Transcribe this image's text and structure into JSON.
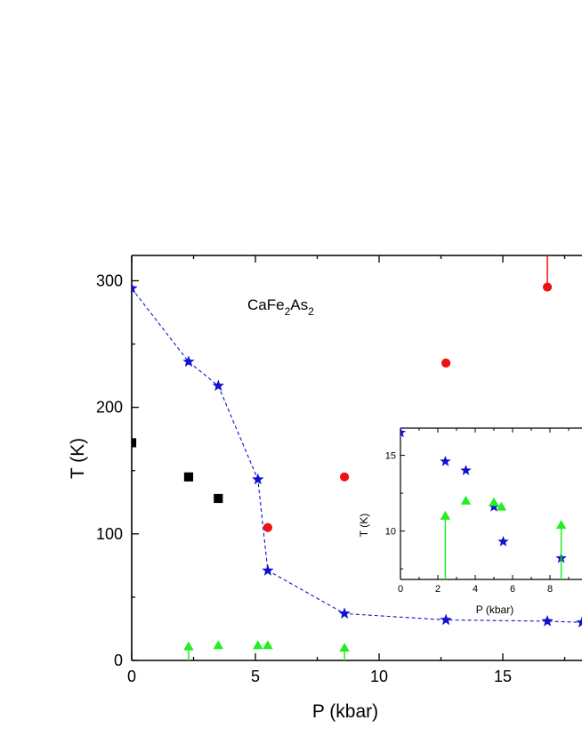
{
  "chart_data": [
    {
      "type": "scatter",
      "xlabel": "P (kbar)",
      "ylabel": "T (K)",
      "xlim": [
        0,
        18.2
      ],
      "ylim": [
        0,
        320
      ],
      "xticks": [
        0,
        5,
        10,
        15
      ],
      "yticks": [
        0,
        100,
        200,
        300
      ],
      "annotation": {
        "parts": [
          "CaFe",
          "2",
          "As",
          "2"
        ]
      },
      "series": [
        {
          "marker": "star",
          "color": "#1010d0",
          "line": "dashed",
          "x": [
            0.0,
            2.3,
            3.5,
            5.1,
            5.5,
            8.6,
            12.7,
            16.8,
            18.2
          ],
          "y": [
            294,
            236,
            217,
            143,
            71,
            37,
            32,
            31,
            30
          ]
        },
        {
          "marker": "square",
          "color": "#000000",
          "x": [
            0.0,
            2.3,
            3.5
          ],
          "y": [
            172,
            145,
            128
          ]
        },
        {
          "marker": "circle",
          "color": "#ee1111",
          "x": [
            5.5,
            8.6,
            12.7,
            16.8
          ],
          "y": [
            105,
            145,
            235,
            295
          ],
          "up_arrow_index": 3
        },
        {
          "marker": "triangle",
          "color": "#22ee22",
          "x": [
            2.3,
            3.5,
            5.1,
            5.5,
            8.6
          ],
          "y": [
            11,
            12,
            12,
            12,
            10
          ],
          "up_arrow_indices": [
            0,
            4
          ]
        }
      ]
    },
    {
      "type": "scatter",
      "inset": true,
      "xlabel": "P (kbar)",
      "ylabel": "T (K)",
      "xlim": [
        0,
        9.3
      ],
      "ylim": [
        6.8,
        16.8
      ],
      "xticks": [
        0,
        2,
        4,
        6,
        8
      ],
      "yticks": [
        10,
        15
      ],
      "series": [
        {
          "marker": "star",
          "color": "#1010d0",
          "x": [
            0.0,
            2.4,
            3.5,
            5.0,
            5.5,
            8.6
          ],
          "y": [
            16.5,
            14.6,
            14.0,
            11.6,
            9.3,
            8.2
          ]
        },
        {
          "marker": "triangle",
          "color": "#22ee22",
          "x": [
            2.4,
            3.5,
            5.0,
            5.4,
            8.6
          ],
          "y": [
            11.0,
            12.0,
            11.9,
            11.6,
            10.4
          ],
          "up_arrow_indices": [
            0,
            4
          ]
        }
      ]
    }
  ]
}
